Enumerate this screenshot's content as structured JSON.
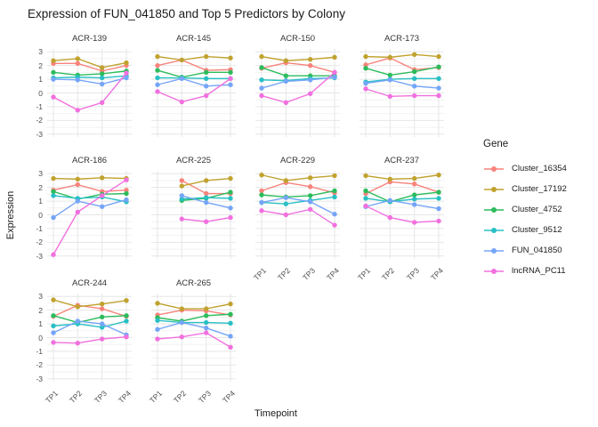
{
  "header": {
    "title": "Expression of FUN_041850 and Top 5 Predictors by Colony"
  },
  "chart_data": {
    "type": "line",
    "title": "Expression of FUN_041850 and Top 5 Predictors by Colony",
    "xlabel": "Timepoint",
    "ylabel": "Expression",
    "categories": [
      "TP1",
      "TP2",
      "TP3",
      "TP4"
    ],
    "ylim": [
      -3,
      3
    ],
    "yticks": [
      3,
      2,
      1,
      0,
      -1,
      -2,
      -3
    ],
    "grid": true,
    "legend_title": "Gene",
    "legend_position": "right",
    "series_meta": [
      {
        "name": "Cluster_16354",
        "color": "#F8837B"
      },
      {
        "name": "Cluster_17192",
        "color": "#C0A22E"
      },
      {
        "name": "Cluster_4752",
        "color": "#2CBC5C"
      },
      {
        "name": "Cluster_9512",
        "color": "#28C0C4"
      },
      {
        "name": "FUN_041850",
        "color": "#75A5F8"
      },
      {
        "name": "lncRNA_PC11",
        "color": "#F170DF"
      }
    ],
    "facets": [
      {
        "colony": "ACR-139",
        "series": {
          "Cluster_16354": [
            2.15,
            2.15,
            1.6,
            2.0
          ],
          "Cluster_17192": [
            2.35,
            2.5,
            1.85,
            2.2
          ],
          "Cluster_4752": [
            1.5,
            1.3,
            1.4,
            1.6
          ],
          "Cluster_9512": [
            1.1,
            1.15,
            1.1,
            1.25
          ],
          "FUN_041850": [
            1.0,
            0.95,
            0.65,
            1.1
          ],
          "lncRNA_PC11": [
            -0.3,
            -1.25,
            -0.7,
            1.45
          ]
        }
      },
      {
        "colony": "ACR-145",
        "series": {
          "Cluster_16354": [
            2.0,
            2.4,
            1.65,
            1.7
          ],
          "Cluster_17192": [
            2.65,
            2.4,
            2.65,
            2.55
          ],
          "Cluster_4752": [
            1.65,
            1.15,
            1.5,
            1.5
          ],
          "Cluster_9512": [
            1.1,
            1.1,
            1.05,
            1.05
          ],
          "FUN_041850": [
            0.6,
            1.05,
            0.5,
            0.6
          ],
          "lncRNA_PC11": [
            0.1,
            -0.65,
            -0.2,
            1.05
          ]
        }
      },
      {
        "colony": "ACR-150",
        "series": {
          "Cluster_16354": [
            1.8,
            2.2,
            2.0,
            1.5
          ],
          "Cluster_17192": [
            2.65,
            2.35,
            2.45,
            2.6
          ],
          "Cluster_4752": [
            1.85,
            1.25,
            1.25,
            1.25
          ],
          "Cluster_9512": [
            0.95,
            0.9,
            1.05,
            1.1
          ],
          "FUN_041850": [
            0.35,
            0.85,
            0.95,
            1.15
          ],
          "lncRNA_PC11": [
            -0.2,
            -0.7,
            -0.05,
            1.5
          ]
        }
      },
      {
        "colony": "ACR-173",
        "series": {
          "Cluster_16354": [
            2.05,
            2.55,
            1.7,
            1.85
          ],
          "Cluster_17192": [
            2.65,
            2.6,
            2.8,
            2.65
          ],
          "Cluster_4752": [
            1.8,
            1.3,
            1.55,
            1.9
          ],
          "Cluster_9512": [
            0.8,
            1.0,
            1.05,
            1.05
          ],
          "FUN_041850": [
            0.7,
            0.95,
            0.5,
            0.35
          ],
          "lncRNA_PC11": [
            0.3,
            -0.25,
            -0.2,
            -0.2
          ]
        }
      },
      {
        "colony": "ACR-186",
        "series": {
          "Cluster_16354": [
            1.8,
            2.2,
            1.7,
            1.8
          ],
          "Cluster_17192": [
            2.65,
            2.6,
            2.7,
            2.65
          ],
          "Cluster_4752": [
            1.7,
            1.15,
            1.5,
            1.55
          ],
          "Cluster_9512": [
            1.4,
            1.2,
            1.3,
            0.95
          ],
          "FUN_041850": [
            -0.2,
            1.0,
            0.6,
            1.1
          ],
          "lncRNA_PC11": [
            -2.9,
            0.2,
            1.4,
            2.55
          ]
        }
      },
      {
        "colony": "ACR-225",
        "series": {
          "Cluster_16354": [
            null,
            2.5,
            1.55,
            1.55
          ],
          "Cluster_17192": [
            null,
            2.1,
            2.5,
            2.65
          ],
          "Cluster_4752": [
            null,
            1.05,
            1.2,
            1.65
          ],
          "Cluster_9512": [
            null,
            1.15,
            1.25,
            1.2
          ],
          "FUN_041850": [
            null,
            1.4,
            0.9,
            0.5
          ],
          "lncRNA_PC11": [
            null,
            -0.3,
            -0.5,
            -0.2
          ]
        }
      },
      {
        "colony": "ACR-229",
        "series": {
          "Cluster_16354": [
            1.75,
            2.35,
            2.05,
            1.6
          ],
          "Cluster_17192": [
            2.9,
            2.5,
            2.7,
            2.85
          ],
          "Cluster_4752": [
            1.45,
            1.3,
            1.4,
            1.75
          ],
          "Cluster_9512": [
            0.9,
            0.8,
            1.05,
            1.3
          ],
          "FUN_041850": [
            0.9,
            1.25,
            0.95,
            0.05
          ],
          "lncRNA_PC11": [
            0.3,
            0.0,
            0.4,
            -0.75
          ]
        }
      },
      {
        "colony": "ACR-237",
        "series": {
          "Cluster_16354": [
            1.55,
            2.4,
            2.25,
            1.65
          ],
          "Cluster_17192": [
            2.85,
            2.6,
            2.65,
            2.9
          ],
          "Cluster_4752": [
            1.75,
            0.95,
            1.45,
            1.65
          ],
          "Cluster_9512": [
            1.2,
            0.95,
            1.15,
            1.2
          ],
          "FUN_041850": [
            0.6,
            1.05,
            0.75,
            0.45
          ],
          "lncRNA_PC11": [
            0.65,
            -0.2,
            -0.55,
            -0.45
          ]
        }
      },
      {
        "colony": "ACR-244",
        "series": {
          "Cluster_16354": [
            1.55,
            2.35,
            2.1,
            1.55
          ],
          "Cluster_17192": [
            2.75,
            2.25,
            2.45,
            2.7
          ],
          "Cluster_4752": [
            1.6,
            1.1,
            1.5,
            1.6
          ],
          "Cluster_9512": [
            0.85,
            1.0,
            0.75,
            1.2
          ],
          "FUN_041850": [
            0.35,
            1.2,
            1.0,
            0.2
          ],
          "lncRNA_PC11": [
            -0.35,
            -0.4,
            -0.1,
            0.05
          ]
        }
      },
      {
        "colony": "ACR-265",
        "series": {
          "Cluster_16354": [
            1.65,
            2.0,
            1.95,
            1.65
          ],
          "Cluster_17192": [
            2.5,
            2.1,
            2.1,
            2.45
          ],
          "Cluster_4752": [
            1.45,
            1.2,
            1.6,
            1.7
          ],
          "Cluster_9512": [
            1.25,
            1.1,
            1.1,
            1.05
          ],
          "FUN_041850": [
            0.6,
            1.1,
            0.7,
            0.1
          ],
          "lncRNA_PC11": [
            -0.1,
            0.05,
            0.35,
            -0.7
          ]
        }
      }
    ]
  },
  "colors": {
    "grid_major": "#e6e6e6",
    "grid_minor": "#f2f2f2",
    "tick_text": "#4d4d4d",
    "strip_text": "#333333"
  }
}
